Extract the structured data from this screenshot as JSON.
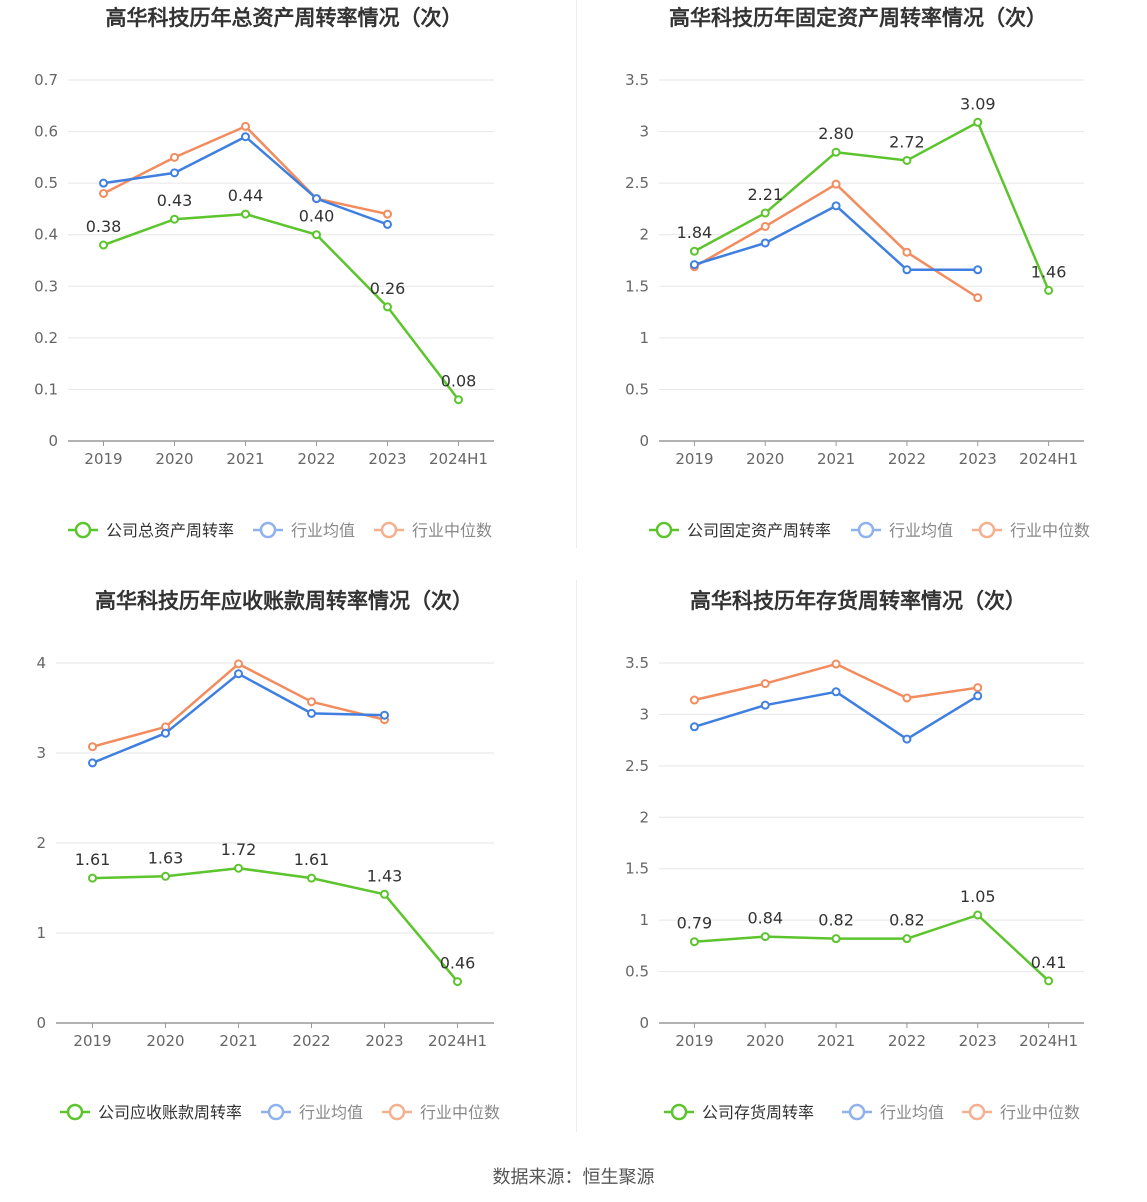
{
  "footer": {
    "source": "数据来源：恒生聚源"
  },
  "colors": {
    "company": "#5cc42c",
    "avg": "#3f7fe0",
    "median": "#f28c5e",
    "grid": "#e6e6e6",
    "axis": "#999999",
    "tick": "#666666"
  },
  "chart_data": [
    {
      "type": "line",
      "title": "高华科技历年总资产周转率情况（次）",
      "categories": [
        "2019",
        "2020",
        "2021",
        "2022",
        "2023",
        "2024H1"
      ],
      "yticks": [
        "0",
        "0.1",
        "0.2",
        "0.3",
        "0.4",
        "0.5",
        "0.6",
        "0.7"
      ],
      "ylim": [
        0,
        0.7
      ],
      "series": [
        {
          "name": "公司总资产周转率",
          "role": "company",
          "values": [
            0.38,
            0.43,
            0.44,
            0.4,
            0.26,
            0.08
          ],
          "labels": [
            "0.38",
            "0.43",
            "0.44",
            "0.40",
            "0.26",
            "0.08"
          ]
        },
        {
          "name": "行业均值",
          "role": "avg",
          "values": [
            0.5,
            0.52,
            0.59,
            0.47,
            0.42,
            null
          ]
        },
        {
          "name": "行业中位数",
          "role": "median",
          "values": [
            0.48,
            0.55,
            0.61,
            0.47,
            0.44,
            null
          ]
        }
      ],
      "grid": true,
      "legend_position": "bottom"
    },
    {
      "type": "line",
      "title": "高华科技历年固定资产周转率情况（次）",
      "categories": [
        "2019",
        "2020",
        "2021",
        "2022",
        "2023",
        "2024H1"
      ],
      "yticks": [
        "0",
        "0.5",
        "1",
        "1.5",
        "2",
        "2.5",
        "3",
        "3.5"
      ],
      "ylim": [
        0,
        3.5
      ],
      "series": [
        {
          "name": "公司固定资产周转率",
          "role": "company",
          "values": [
            1.84,
            2.21,
            2.8,
            2.72,
            3.09,
            1.46
          ],
          "labels": [
            "1.84",
            "2.21",
            "2.80",
            "2.72",
            "3.09",
            "1.46"
          ]
        },
        {
          "name": "行业均值",
          "role": "avg",
          "values": [
            1.71,
            1.92,
            2.28,
            1.66,
            1.66,
            null
          ]
        },
        {
          "name": "行业中位数",
          "role": "median",
          "values": [
            1.69,
            2.08,
            2.49,
            1.83,
            1.39,
            null
          ]
        }
      ],
      "grid": true,
      "legend_position": "bottom"
    },
    {
      "type": "line",
      "title": "高华科技历年应收账款周转率情况（次）",
      "categories": [
        "2019",
        "2020",
        "2021",
        "2022",
        "2023",
        "2024H1"
      ],
      "yticks": [
        "0",
        "1",
        "2",
        "3",
        "4"
      ],
      "ylim": [
        0,
        4
      ],
      "series": [
        {
          "name": "公司应收账款周转率",
          "role": "company",
          "values": [
            1.61,
            1.63,
            1.72,
            1.61,
            1.43,
            0.46
          ],
          "labels": [
            "1.61",
            "1.63",
            "1.72",
            "1.61",
            "1.43",
            "0.46"
          ]
        },
        {
          "name": "行业均值",
          "role": "avg",
          "values": [
            2.89,
            3.22,
            3.88,
            3.44,
            3.42,
            null
          ]
        },
        {
          "name": "行业中位数",
          "role": "median",
          "values": [
            3.07,
            3.29,
            3.99,
            3.57,
            3.37,
            null
          ]
        }
      ],
      "grid": true,
      "legend_position": "bottom"
    },
    {
      "type": "line",
      "title": "高华科技历年存货周转率情况（次）",
      "categories": [
        "2019",
        "2020",
        "2021",
        "2022",
        "2023",
        "2024H1"
      ],
      "yticks": [
        "0",
        "0.5",
        "1",
        "1.5",
        "2",
        "2.5",
        "3",
        "3.5"
      ],
      "ylim": [
        0,
        3.5
      ],
      "series": [
        {
          "name": "公司存货周转率",
          "role": "company",
          "values": [
            0.79,
            0.84,
            0.82,
            0.82,
            1.05,
            0.41
          ],
          "labels": [
            "0.79",
            "0.84",
            "0.82",
            "0.82",
            "1.05",
            "0.41"
          ]
        },
        {
          "name": "行业均值",
          "role": "avg",
          "values": [
            2.88,
            3.09,
            3.22,
            2.76,
            3.18,
            null
          ]
        },
        {
          "name": "行业中位数",
          "role": "median",
          "values": [
            3.14,
            3.3,
            3.49,
            3.16,
            3.26,
            null
          ]
        }
      ],
      "grid": true,
      "legend_position": "bottom"
    }
  ]
}
